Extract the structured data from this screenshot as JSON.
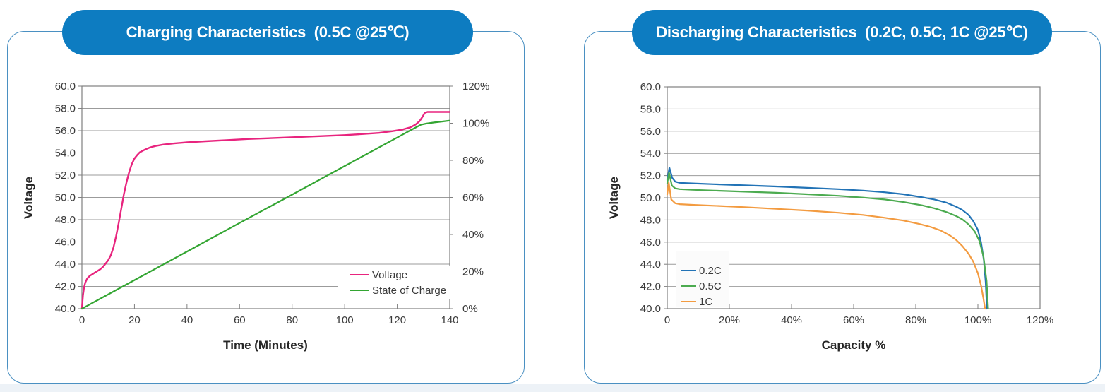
{
  "page": {
    "background_color": "#ffffff",
    "footer_strip_color": "#edf2f7",
    "accent_blue": "#0d7cc1",
    "card_border_color": "#4a90c2"
  },
  "cards": [
    {
      "title": "Charging Characteristics  (0.5C @25℃)"
    },
    {
      "title": "Discharging Characteristics  (0.2C, 0.5C, 1C @25℃)"
    }
  ],
  "chart_data": [
    {
      "id": "charging",
      "type": "line",
      "title": "Charging Characteristics (0.5C @25℃)",
      "grid": "horizontal",
      "x": {
        "label": "Time (Minutes)",
        "min": 0,
        "max": 140,
        "tick_values": [
          0,
          20,
          40,
          60,
          80,
          100,
          120,
          140
        ],
        "tick_labels": [
          "0",
          "20",
          "40",
          "60",
          "80",
          "100",
          "120",
          "140"
        ]
      },
      "y_left": {
        "label": "Voltage",
        "min": 40,
        "max": 60,
        "tick_values": [
          40,
          42,
          44,
          46,
          48,
          50,
          52,
          54,
          56,
          58,
          60
        ],
        "tick_labels": [
          "40.0",
          "42.0",
          "44.0",
          "46.0",
          "48.0",
          "50.0",
          "52.0",
          "54.0",
          "56.0",
          "58.0",
          "60.0"
        ]
      },
      "y_right": {
        "label": "",
        "min": 0,
        "max": 120,
        "tick_values": [
          0,
          20,
          40,
          60,
          80,
          100,
          120
        ],
        "tick_labels": [
          "0%",
          "20%",
          "40%",
          "60%",
          "80%",
          "100%",
          "120%"
        ]
      },
      "legend": {
        "position": "inside-bottom-right",
        "boxed": false
      },
      "series": [
        {
          "name": "Voltage",
          "color": "#e8247e",
          "axis": "left",
          "width": 2.4,
          "points": [
            [
              0,
              40
            ],
            [
              0.4,
              41.2
            ],
            [
              0.8,
              41.9
            ],
            [
              1.3,
              42.35
            ],
            [
              2,
              42.7
            ],
            [
              3,
              42.95
            ],
            [
              4,
              43.1
            ],
            [
              5,
              43.25
            ],
            [
              6,
              43.4
            ],
            [
              7,
              43.55
            ],
            [
              8,
              43.75
            ],
            [
              9,
              44.05
            ],
            [
              10,
              44.35
            ],
            [
              11,
              44.8
            ],
            [
              12,
              45.5
            ],
            [
              13,
              46.5
            ],
            [
              14,
              47.7
            ],
            [
              15,
              49.0
            ],
            [
              16,
              50.3
            ],
            [
              17,
              51.4
            ],
            [
              18,
              52.3
            ],
            [
              19,
              53.0
            ],
            [
              20,
              53.5
            ],
            [
              21,
              53.8
            ],
            [
              22,
              54.05
            ],
            [
              24,
              54.3
            ],
            [
              26,
              54.5
            ],
            [
              28,
              54.62
            ],
            [
              31,
              54.75
            ],
            [
              35,
              54.85
            ],
            [
              40,
              54.95
            ],
            [
              47,
              55.05
            ],
            [
              55,
              55.15
            ],
            [
              63,
              55.25
            ],
            [
              72,
              55.33
            ],
            [
              82,
              55.42
            ],
            [
              92,
              55.52
            ],
            [
              100,
              55.6
            ],
            [
              107,
              55.7
            ],
            [
              113,
              55.8
            ],
            [
              118,
              55.95
            ],
            [
              122,
              56.1
            ],
            [
              125,
              56.3
            ],
            [
              127,
              56.55
            ],
            [
              128.5,
              56.85
            ],
            [
              129.5,
              57.2
            ],
            [
              130.5,
              57.6
            ],
            [
              131.5,
              57.68
            ],
            [
              140,
              57.68
            ]
          ]
        },
        {
          "name": "State of Charge",
          "color": "#33a532",
          "axis": "right",
          "width": 2.2,
          "points": [
            [
              0,
              0
            ],
            [
              20,
              15.4
            ],
            [
              40,
              30.8
            ],
            [
              60,
              46.2
            ],
            [
              80,
              61.5
            ],
            [
              100,
              76.9
            ],
            [
              120,
              92.3
            ],
            [
              125,
              96.2
            ],
            [
              129,
              99.2
            ],
            [
              131,
              99.8
            ],
            [
              134,
              100.4
            ],
            [
              137,
              100.9
            ],
            [
              140,
              101.4
            ]
          ]
        }
      ]
    },
    {
      "id": "discharging",
      "type": "line",
      "title": "Discharging Characteristics (0.2C, 0.5C, 1C @25℃)",
      "grid": "horizontal",
      "x": {
        "label": "Capacity %",
        "min": 0,
        "max": 120,
        "tick_values": [
          0,
          20,
          40,
          60,
          80,
          100,
          120
        ],
        "tick_labels": [
          "0",
          "20%",
          "40%",
          "60%",
          "80%",
          "100%",
          "120%"
        ]
      },
      "y_left": {
        "label": "Voltage",
        "min": 40,
        "max": 60,
        "tick_values": [
          40,
          42,
          44,
          46,
          48,
          50,
          52,
          54,
          56,
          58,
          60
        ],
        "tick_labels": [
          "40.0",
          "42.0",
          "44.0",
          "46.0",
          "48.0",
          "50.0",
          "52.0",
          "54.0",
          "56.0",
          "58.0",
          "60.0"
        ]
      },
      "y_right": null,
      "legend": {
        "position": "inside-left",
        "boxed": true
      },
      "series": [
        {
          "name": "0.2C",
          "color": "#2273b6",
          "axis": "left",
          "width": 2.2,
          "points": [
            [
              0,
              51.6
            ],
            [
              0.7,
              52.7
            ],
            [
              1.6,
              51.8
            ],
            [
              2.6,
              51.45
            ],
            [
              4,
              51.35
            ],
            [
              8,
              51.3
            ],
            [
              15,
              51.22
            ],
            [
              25,
              51.12
            ],
            [
              35,
              51.02
            ],
            [
              45,
              50.9
            ],
            [
              55,
              50.78
            ],
            [
              63,
              50.65
            ],
            [
              70,
              50.5
            ],
            [
              76,
              50.32
            ],
            [
              82,
              50.05
            ],
            [
              86,
              49.85
            ],
            [
              90,
              49.55
            ],
            [
              93,
              49.2
            ],
            [
              95,
              48.9
            ],
            [
              97,
              48.45
            ],
            [
              98.5,
              47.9
            ],
            [
              100,
              47.1
            ],
            [
              101,
              46.0
            ],
            [
              101.9,
              44.4
            ],
            [
              102.5,
              42.4
            ],
            [
              102.9,
              40
            ]
          ]
        },
        {
          "name": "0.5C",
          "color": "#4cab50",
          "axis": "left",
          "width": 2.2,
          "points": [
            [
              0,
              51.3
            ],
            [
              0.6,
              52.25
            ],
            [
              1.5,
              51.1
            ],
            [
              2.6,
              50.85
            ],
            [
              4,
              50.78
            ],
            [
              8,
              50.72
            ],
            [
              15,
              50.65
            ],
            [
              25,
              50.55
            ],
            [
              35,
              50.45
            ],
            [
              45,
              50.32
            ],
            [
              55,
              50.18
            ],
            [
              63,
              50.02
            ],
            [
              70,
              49.85
            ],
            [
              76,
              49.62
            ],
            [
              82,
              49.32
            ],
            [
              86,
              49.05
            ],
            [
              90,
              48.7
            ],
            [
              93,
              48.35
            ],
            [
              95,
              48.05
            ],
            [
              97,
              47.6
            ],
            [
              99,
              46.95
            ],
            [
              100.5,
              46.1
            ],
            [
              101.8,
              44.7
            ],
            [
              102.8,
              42.5
            ],
            [
              103.3,
              40
            ]
          ]
        },
        {
          "name": "1C",
          "color": "#f39b40",
          "axis": "left",
          "width": 2.2,
          "points": [
            [
              0,
              50.3
            ],
            [
              0.5,
              51.35
            ],
            [
              1.3,
              49.85
            ],
            [
              2.6,
              49.5
            ],
            [
              4,
              49.42
            ],
            [
              8,
              49.36
            ],
            [
              15,
              49.28
            ],
            [
              25,
              49.15
            ],
            [
              35,
              49.0
            ],
            [
              45,
              48.85
            ],
            [
              55,
              48.65
            ],
            [
              63,
              48.45
            ],
            [
              70,
              48.2
            ],
            [
              76,
              47.95
            ],
            [
              81,
              47.65
            ],
            [
              85,
              47.35
            ],
            [
              88,
              47.05
            ],
            [
              91,
              46.6
            ],
            [
              93,
              46.2
            ],
            [
              95,
              45.65
            ],
            [
              97,
              44.95
            ],
            [
              98.5,
              44.25
            ],
            [
              100,
              43.2
            ],
            [
              101,
              42.1
            ],
            [
              101.8,
              40.9
            ],
            [
              102.3,
              40
            ]
          ]
        }
      ]
    }
  ]
}
